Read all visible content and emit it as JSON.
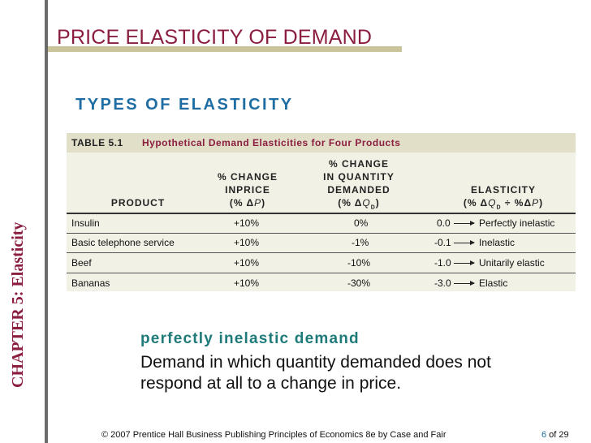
{
  "slide": {
    "title": "PRICE ELASTICITY OF DEMAND",
    "subtitle": "TYPES OF ELASTICITY",
    "chapter": "CHAPTER 5:  Elasticity"
  },
  "table": {
    "number": "TABLE 5.1",
    "caption": "Hypothetical Demand Elasticities for Four Products",
    "headers": {
      "product": "PRODUCT",
      "price_l1": "% CHANGE",
      "price_l2": "INPRICE",
      "price_l3_pre": "(% ",
      "price_delta": "Δ",
      "price_var": "P",
      "price_l3_post": ")",
      "qty_l1": "% CHANGE",
      "qty_l2": "IN QUANTITY",
      "qty_l3": "DEMANDED",
      "qty_l4_pre": "(% ",
      "qty_delta": "Δ",
      "qty_var": "Q",
      "qty_sub": "D",
      "qty_l4_post": ")",
      "elas_l1": "ELASTICITY",
      "elas_pre": "(% ",
      "elas_delta": "Δ",
      "elas_q": "Q",
      "elas_sub": "D",
      "elas_mid": " ÷ %",
      "elas_delta2": "Δ",
      "elas_p": "P",
      "elas_post": ")"
    },
    "rows": [
      {
        "product": "Insulin",
        "price": "+10%",
        "qty": "0%",
        "elasticity": "0.0",
        "type": "Perfectly inelastic"
      },
      {
        "product": "Basic telephone service",
        "price": "+10%",
        "qty": "-1%",
        "elasticity": "-0.1",
        "type": "Inelastic"
      },
      {
        "product": "Beef",
        "price": "+10%",
        "qty": "-10%",
        "elasticity": "-1.0",
        "type": "Unitarily elastic"
      },
      {
        "product": "Bananas",
        "price": "+10%",
        "qty": "-30%",
        "elasticity": "-3.0",
        "type": "Elastic"
      }
    ]
  },
  "definition": {
    "term": "perfectly inelastic demand",
    "text": "Demand in which quantity demanded does not respond at all to a change in price."
  },
  "footer": {
    "text": "© 2007 Prentice Hall Business Publishing   Principles of Economics 8e by Case and Fair",
    "page": "6",
    "of": " of 29"
  }
}
